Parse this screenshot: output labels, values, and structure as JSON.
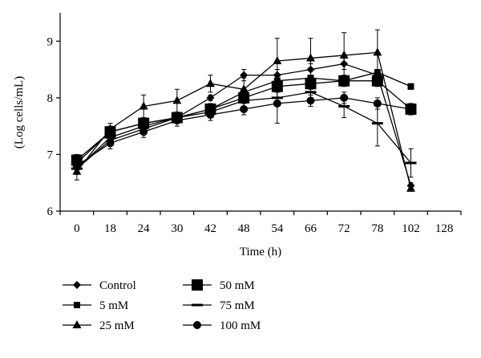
{
  "chart_data": {
    "type": "line",
    "title": "",
    "xlabel": "Time (h)",
    "ylabel": "(Log cells/mL)",
    "x_ticks": [
      "0",
      "18",
      "24",
      "30",
      "42",
      "48",
      "54",
      "66",
      "72",
      "78",
      "102",
      "128"
    ],
    "y_ticks": [
      "6",
      "7",
      "8",
      "9"
    ],
    "ylim": [
      6,
      9.5
    ],
    "x_axis": "categorical",
    "grid": false,
    "legend_position": "bottom",
    "series": [
      {
        "name": "Control",
        "marker": "diamond",
        "x": [
          "0",
          "18",
          "24",
          "30",
          "42",
          "48",
          "54",
          "66",
          "72",
          "78",
          "102"
        ],
        "values": [
          6.75,
          7.25,
          7.45,
          7.65,
          8.0,
          8.4,
          8.4,
          8.5,
          8.6,
          8.4,
          6.45
        ],
        "errors": [
          0.1,
          0.05,
          0.05,
          0.05,
          0.05,
          0.1,
          0.1,
          0.1,
          0.1,
          0.1,
          0.05
        ]
      },
      {
        "name": "5 mM",
        "marker": "square-small",
        "x": [
          "0",
          "18",
          "24",
          "30",
          "42",
          "48",
          "54",
          "66",
          "72",
          "78",
          "102"
        ],
        "values": [
          6.85,
          7.4,
          7.55,
          7.65,
          7.8,
          8.1,
          8.3,
          8.35,
          8.3,
          8.45,
          8.2
        ],
        "errors": [
          0.05,
          0.05,
          0.05,
          0.05,
          0.05,
          0.05,
          0.05,
          0.05,
          0.05,
          0.05,
          0.05
        ]
      },
      {
        "name": "25 mM",
        "marker": "triangle",
        "x": [
          "0",
          "18",
          "24",
          "30",
          "42",
          "48",
          "54",
          "66",
          "72",
          "78",
          "102"
        ],
        "values": [
          6.7,
          7.45,
          7.85,
          7.95,
          8.25,
          8.15,
          8.65,
          8.7,
          8.75,
          8.8,
          6.4
        ],
        "errors": [
          0.15,
          0.1,
          0.2,
          0.2,
          0.15,
          0.2,
          0.4,
          0.35,
          0.4,
          0.4,
          0.05
        ]
      },
      {
        "name": "50 mM",
        "marker": "square-large",
        "x": [
          "0",
          "18",
          "24",
          "30",
          "42",
          "48",
          "54",
          "66",
          "72",
          "78",
          "102"
        ],
        "values": [
          6.9,
          7.4,
          7.55,
          7.65,
          7.8,
          8.0,
          8.2,
          8.25,
          8.3,
          8.3,
          7.8
        ],
        "errors": [
          0.1,
          0.1,
          0.1,
          0.1,
          0.1,
          0.1,
          0.1,
          0.1,
          0.1,
          0.1,
          0.1
        ]
      },
      {
        "name": "75 mM",
        "marker": "dash",
        "x": [
          "0",
          "18",
          "24",
          "30",
          "42",
          "48",
          "54",
          "66",
          "72",
          "78",
          "102"
        ],
        "values": [
          6.75,
          7.3,
          7.5,
          7.65,
          7.75,
          7.95,
          8.0,
          8.1,
          7.85,
          7.55,
          6.85
        ],
        "errors": [
          0.1,
          0.1,
          0.1,
          0.1,
          0.1,
          0.1,
          0.1,
          0.1,
          0.2,
          0.4,
          0.25
        ]
      },
      {
        "name": "100 mM",
        "marker": "circle",
        "x": [
          "0",
          "18",
          "24",
          "30",
          "42",
          "48",
          "54",
          "66",
          "72",
          "78",
          "102"
        ],
        "values": [
          6.8,
          7.2,
          7.4,
          7.6,
          7.7,
          7.8,
          7.9,
          7.95,
          8.0,
          7.9,
          7.8
        ],
        "errors": [
          0.1,
          0.1,
          0.1,
          0.1,
          0.1,
          0.1,
          0.35,
          0.1,
          0.1,
          0.1,
          0.1
        ]
      }
    ]
  }
}
